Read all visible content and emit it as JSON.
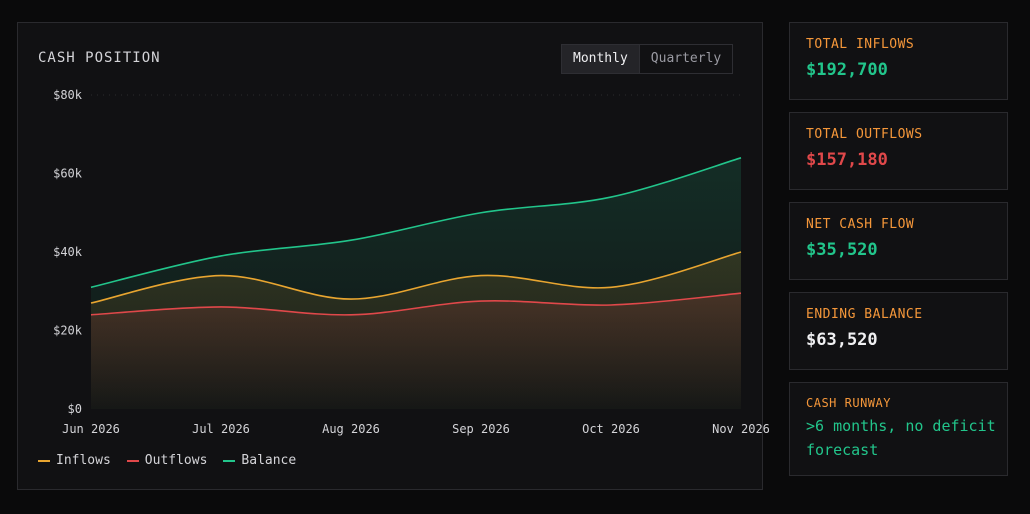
{
  "title": "CASH POSITION",
  "toggle": {
    "options": [
      "Monthly",
      "Quarterly"
    ],
    "selected": "Monthly"
  },
  "colors": {
    "inflows": "#e8a530",
    "outflows": "#e0484a",
    "balance": "#22c58b"
  },
  "chart_data": {
    "type": "area",
    "x": [
      "Jun 2026",
      "Jul 2026",
      "Aug 2026",
      "Sep 2026",
      "Oct 2026",
      "Nov 2026"
    ],
    "y_ticks": [
      "$0",
      "$20k",
      "$40k",
      "$60k",
      "$80k"
    ],
    "ylim": [
      0,
      80000
    ],
    "series": [
      {
        "name": "Inflows",
        "values": [
          27000,
          34000,
          28000,
          34000,
          31000,
          40000
        ]
      },
      {
        "name": "Outflows",
        "values": [
          24000,
          26000,
          24000,
          27500,
          26500,
          29500
        ]
      },
      {
        "name": "Balance",
        "values": [
          31000,
          39000,
          43000,
          50000,
          54000,
          64000
        ]
      }
    ],
    "grid": false,
    "legend": "bottom-left"
  },
  "stats": [
    {
      "label": "TOTAL INFLOWS",
      "value": "$192,700",
      "color": "#22c58b"
    },
    {
      "label": "TOTAL OUTFLOWS",
      "value": "$157,180",
      "color": "#e0484a"
    },
    {
      "label": "NET CASH FLOW",
      "value": "$35,520",
      "color": "#22c58b"
    },
    {
      "label": "ENDING BALANCE",
      "value": "$63,520",
      "color": "#f0f0f2"
    }
  ],
  "runway": {
    "label": "CASH RUNWAY",
    "text": ">6 months, no deficit forecast"
  }
}
